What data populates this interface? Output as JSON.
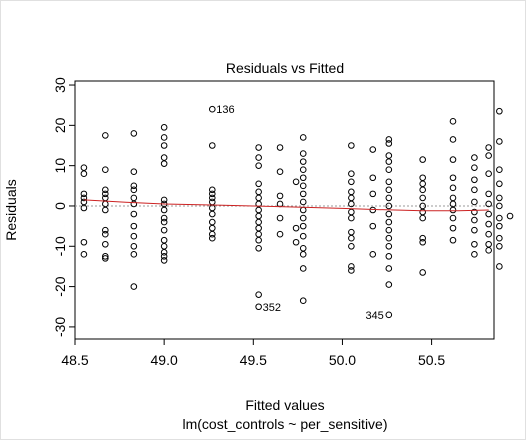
{
  "chart_data": {
    "type": "scatter",
    "title": "Residuals vs Fitted",
    "xlabel": "Fitted values",
    "ylabel": "Residuals",
    "sublabel": "lm(cost_controls ~ per_sensitive)",
    "xlim": [
      48.5,
      50.85
    ],
    "ylim": [
      -33,
      31
    ],
    "x_ticks": [
      48.5,
      49.0,
      49.5,
      50.0,
      50.5
    ],
    "x_tick_labels": [
      "48.5",
      "49.0",
      "49.5",
      "50.0",
      "50.5"
    ],
    "y_ticks": [
      -30,
      -20,
      -10,
      0,
      10,
      20,
      30
    ],
    "y_tick_labels": [
      "-30",
      "-20",
      "-10",
      "0",
      "10",
      "20",
      "30"
    ],
    "zero_line": 0,
    "colors": {
      "points": "#000000",
      "smoother": "#cc2222",
      "zero_line": "#999999"
    },
    "smoother": {
      "x": [
        48.55,
        48.8,
        49.0,
        49.3,
        49.5,
        49.75,
        50.0,
        50.2,
        50.45,
        50.65,
        50.82
      ],
      "y": [
        1.5,
        0.9,
        0.5,
        0.2,
        0.0,
        -0.3,
        -0.6,
        -0.9,
        -1.2,
        -1.2,
        -1.0
      ]
    },
    "points": [
      {
        "x": 48.55,
        "y": 9.5
      },
      {
        "x": 48.55,
        "y": 8.0
      },
      {
        "x": 48.55,
        "y": 3.0
      },
      {
        "x": 48.55,
        "y": 2.0
      },
      {
        "x": 48.55,
        "y": 1.0
      },
      {
        "x": 48.55,
        "y": -0.5
      },
      {
        "x": 48.55,
        "y": -9.0
      },
      {
        "x": 48.55,
        "y": -12.0
      },
      {
        "x": 48.67,
        "y": 17.5
      },
      {
        "x": 48.67,
        "y": 9.0
      },
      {
        "x": 48.67,
        "y": 4.0
      },
      {
        "x": 48.67,
        "y": 3.0
      },
      {
        "x": 48.67,
        "y": 2.0
      },
      {
        "x": 48.67,
        "y": 0.5
      },
      {
        "x": 48.67,
        "y": -1.0
      },
      {
        "x": 48.67,
        "y": -6.0
      },
      {
        "x": 48.67,
        "y": -7.0
      },
      {
        "x": 48.67,
        "y": -9.5
      },
      {
        "x": 48.67,
        "y": -12.5
      },
      {
        "x": 48.67,
        "y": -13.0
      },
      {
        "x": 48.83,
        "y": 18.0
      },
      {
        "x": 48.83,
        "y": 8.5
      },
      {
        "x": 48.83,
        "y": 5.0
      },
      {
        "x": 48.83,
        "y": 4.0
      },
      {
        "x": 48.83,
        "y": 2.0
      },
      {
        "x": 48.83,
        "y": 0.5
      },
      {
        "x": 48.83,
        "y": -2.0
      },
      {
        "x": 48.83,
        "y": -5.0
      },
      {
        "x": 48.83,
        "y": -7.5
      },
      {
        "x": 48.83,
        "y": -10.0
      },
      {
        "x": 48.83,
        "y": -12.0
      },
      {
        "x": 48.83,
        "y": -20.0
      },
      {
        "x": 49.0,
        "y": 19.5
      },
      {
        "x": 49.0,
        "y": 17.0
      },
      {
        "x": 49.0,
        "y": 15.0
      },
      {
        "x": 49.0,
        "y": 12.0
      },
      {
        "x": 49.0,
        "y": 10.5
      },
      {
        "x": 49.0,
        "y": 1.5
      },
      {
        "x": 49.0,
        "y": 0.5
      },
      {
        "x": 49.0,
        "y": -1.0
      },
      {
        "x": 49.0,
        "y": -3.0
      },
      {
        "x": 49.0,
        "y": -4.0
      },
      {
        "x": 49.0,
        "y": -6.0
      },
      {
        "x": 49.0,
        "y": -8.5
      },
      {
        "x": 49.0,
        "y": -10.0
      },
      {
        "x": 49.0,
        "y": -11.5
      },
      {
        "x": 49.0,
        "y": -12.5
      },
      {
        "x": 49.0,
        "y": -13.5
      },
      {
        "x": 49.27,
        "y": 24.0,
        "label": "136"
      },
      {
        "x": 49.27,
        "y": 15.0
      },
      {
        "x": 49.27,
        "y": 4.0
      },
      {
        "x": 49.27,
        "y": 3.0
      },
      {
        "x": 49.27,
        "y": 2.0
      },
      {
        "x": 49.27,
        "y": 1.0
      },
      {
        "x": 49.27,
        "y": -0.5
      },
      {
        "x": 49.27,
        "y": -2.0
      },
      {
        "x": 49.27,
        "y": -4.0
      },
      {
        "x": 49.27,
        "y": -5.5
      },
      {
        "x": 49.27,
        "y": -7.0
      },
      {
        "x": 49.27,
        "y": -8.0
      },
      {
        "x": 49.53,
        "y": 14.5
      },
      {
        "x": 49.53,
        "y": 12.0
      },
      {
        "x": 49.53,
        "y": 10.0
      },
      {
        "x": 49.53,
        "y": 5.5
      },
      {
        "x": 49.53,
        "y": 3.5
      },
      {
        "x": 49.53,
        "y": 2.0
      },
      {
        "x": 49.53,
        "y": 0.5
      },
      {
        "x": 49.53,
        "y": -1.0
      },
      {
        "x": 49.53,
        "y": -2.5
      },
      {
        "x": 49.53,
        "y": -4.0
      },
      {
        "x": 49.53,
        "y": -5.5
      },
      {
        "x": 49.53,
        "y": -7.0
      },
      {
        "x": 49.53,
        "y": -8.5
      },
      {
        "x": 49.53,
        "y": -10.5
      },
      {
        "x": 49.53,
        "y": -22.0
      },
      {
        "x": 49.53,
        "y": -25.0,
        "label": "352"
      },
      {
        "x": 49.65,
        "y": 14.5
      },
      {
        "x": 49.65,
        "y": 8.5
      },
      {
        "x": 49.65,
        "y": 2.5
      },
      {
        "x": 49.65,
        "y": 0.5
      },
      {
        "x": 49.65,
        "y": -3.0
      },
      {
        "x": 49.65,
        "y": -7.0
      },
      {
        "x": 49.78,
        "y": 17.0
      },
      {
        "x": 49.78,
        "y": 13.0
      },
      {
        "x": 49.78,
        "y": 11.0
      },
      {
        "x": 49.78,
        "y": 9.0
      },
      {
        "x": 49.78,
        "y": 7.0
      },
      {
        "x": 49.78,
        "y": 5.0
      },
      {
        "x": 49.78,
        "y": 3.0
      },
      {
        "x": 49.78,
        "y": 1.0
      },
      {
        "x": 49.78,
        "y": -1.0
      },
      {
        "x": 49.78,
        "y": -3.0
      },
      {
        "x": 49.78,
        "y": -5.0
      },
      {
        "x": 49.78,
        "y": -7.5
      },
      {
        "x": 49.78,
        "y": -10.5
      },
      {
        "x": 49.78,
        "y": -12.0
      },
      {
        "x": 49.78,
        "y": -15.5
      },
      {
        "x": 49.78,
        "y": -23.5
      },
      {
        "x": 49.74,
        "y": 6.0
      },
      {
        "x": 49.74,
        "y": -5.5
      },
      {
        "x": 49.74,
        "y": -9.0
      },
      {
        "x": 50.05,
        "y": 15.0
      },
      {
        "x": 50.05,
        "y": 8.0
      },
      {
        "x": 50.05,
        "y": 6.0
      },
      {
        "x": 50.05,
        "y": 3.5
      },
      {
        "x": 50.05,
        "y": 2.0
      },
      {
        "x": 50.05,
        "y": 0.5
      },
      {
        "x": 50.05,
        "y": -1.5
      },
      {
        "x": 50.05,
        "y": -3.0
      },
      {
        "x": 50.05,
        "y": -6.5
      },
      {
        "x": 50.05,
        "y": -8.0
      },
      {
        "x": 50.05,
        "y": -10.0
      },
      {
        "x": 50.05,
        "y": -15.0
      },
      {
        "x": 50.05,
        "y": -16.0
      },
      {
        "x": 50.17,
        "y": 14.0
      },
      {
        "x": 50.17,
        "y": 7.0
      },
      {
        "x": 50.17,
        "y": 3.0
      },
      {
        "x": 50.17,
        "y": -1.0
      },
      {
        "x": 50.17,
        "y": -5.0
      },
      {
        "x": 50.17,
        "y": -12.0
      },
      {
        "x": 50.26,
        "y": 16.5
      },
      {
        "x": 50.26,
        "y": 15.5
      },
      {
        "x": 50.26,
        "y": 12.5
      },
      {
        "x": 50.26,
        "y": 11.0
      },
      {
        "x": 50.26,
        "y": 9.0
      },
      {
        "x": 50.26,
        "y": 6.0
      },
      {
        "x": 50.26,
        "y": 4.0
      },
      {
        "x": 50.26,
        "y": 2.0
      },
      {
        "x": 50.26,
        "y": 0.0
      },
      {
        "x": 50.26,
        "y": -2.0
      },
      {
        "x": 50.26,
        "y": -4.0
      },
      {
        "x": 50.26,
        "y": -6.0
      },
      {
        "x": 50.26,
        "y": -8.0
      },
      {
        "x": 50.26,
        "y": -10.0
      },
      {
        "x": 50.26,
        "y": -12.5
      },
      {
        "x": 50.26,
        "y": -15.5
      },
      {
        "x": 50.26,
        "y": -19.5
      },
      {
        "x": 50.26,
        "y": -27.0,
        "label": "345"
      },
      {
        "x": 50.45,
        "y": 11.5
      },
      {
        "x": 50.45,
        "y": 7.0
      },
      {
        "x": 50.45,
        "y": 5.5
      },
      {
        "x": 50.45,
        "y": 4.0
      },
      {
        "x": 50.45,
        "y": 2.0
      },
      {
        "x": 50.45,
        "y": 0.0
      },
      {
        "x": 50.45,
        "y": -1.5
      },
      {
        "x": 50.45,
        "y": -3.0
      },
      {
        "x": 50.45,
        "y": -8.0
      },
      {
        "x": 50.45,
        "y": -9.0
      },
      {
        "x": 50.45,
        "y": -16.5
      },
      {
        "x": 50.62,
        "y": 21.0
      },
      {
        "x": 50.62,
        "y": 16.5
      },
      {
        "x": 50.62,
        "y": 11.5
      },
      {
        "x": 50.62,
        "y": 7.0
      },
      {
        "x": 50.62,
        "y": 4.5
      },
      {
        "x": 50.62,
        "y": 2.0
      },
      {
        "x": 50.62,
        "y": 0.5
      },
      {
        "x": 50.62,
        "y": -1.0
      },
      {
        "x": 50.62,
        "y": -3.0
      },
      {
        "x": 50.62,
        "y": -5.5
      },
      {
        "x": 50.62,
        "y": -8.5
      },
      {
        "x": 50.74,
        "y": 12.0
      },
      {
        "x": 50.74,
        "y": 9.5
      },
      {
        "x": 50.74,
        "y": 6.5
      },
      {
        "x": 50.74,
        "y": 4.0
      },
      {
        "x": 50.74,
        "y": 1.0
      },
      {
        "x": 50.74,
        "y": -1.5
      },
      {
        "x": 50.74,
        "y": -3.5
      },
      {
        "x": 50.74,
        "y": -6.0
      },
      {
        "x": 50.74,
        "y": -9.5
      },
      {
        "x": 50.74,
        "y": -12.0
      },
      {
        "x": 50.82,
        "y": 14.5
      },
      {
        "x": 50.82,
        "y": 12.5
      },
      {
        "x": 50.82,
        "y": 8.0
      },
      {
        "x": 50.82,
        "y": 3.0
      },
      {
        "x": 50.82,
        "y": 0.5
      },
      {
        "x": 50.82,
        "y": -2.0
      },
      {
        "x": 50.82,
        "y": -4.5
      },
      {
        "x": 50.82,
        "y": -7.0
      },
      {
        "x": 50.82,
        "y": -9.5
      },
      {
        "x": 50.82,
        "y": -11.0
      },
      {
        "x": 50.88,
        "y": 23.5
      },
      {
        "x": 50.88,
        "y": 16.0
      },
      {
        "x": 50.88,
        "y": 9.0
      },
      {
        "x": 50.88,
        "y": 5.5
      },
      {
        "x": 50.88,
        "y": 2.0
      },
      {
        "x": 50.88,
        "y": 0.0
      },
      {
        "x": 50.88,
        "y": -3.0
      },
      {
        "x": 50.88,
        "y": -5.0
      },
      {
        "x": 50.88,
        "y": -8.0
      },
      {
        "x": 50.88,
        "y": -10.0
      },
      {
        "x": 50.88,
        "y": -15.0
      },
      {
        "x": 50.94,
        "y": -2.5
      }
    ]
  }
}
